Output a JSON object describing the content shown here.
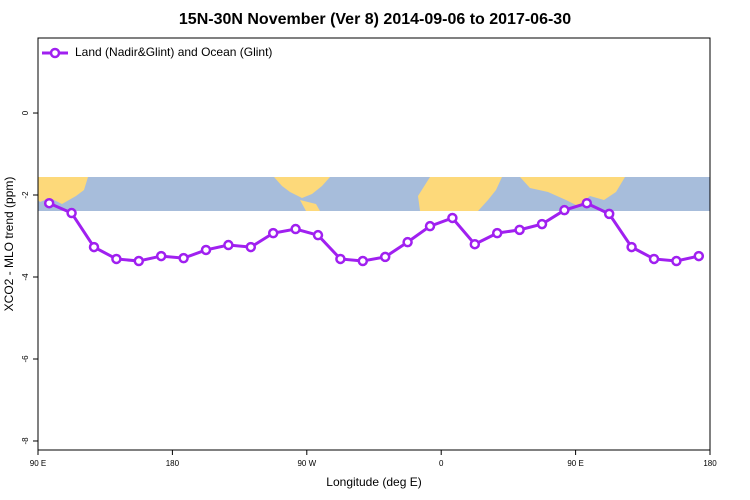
{
  "chart_data": {
    "type": "line",
    "title": "15N-30N November (Ver 8)   2014-09-06 to 2017-06-30",
    "x_label": "Longitude (deg E)",
    "y_label": "XCO2 - MLO trend (ppm)",
    "x": [
      97.5,
      112.5,
      127.5,
      142.5,
      157.5,
      172.5,
      187.5,
      202.5,
      217.5,
      232.5,
      247.5,
      262.5,
      277.5,
      292.5,
      307.5,
      322.5,
      337.5,
      352.5,
      367.5,
      382.5,
      397.5,
      412.5,
      427.5,
      442.5,
      457.5,
      472.5,
      487.5,
      502.5,
      517.5,
      532.5
    ],
    "series": [
      {
        "name": "Land (Nadir&Glint) and Ocean (Glint)",
        "color": "#a020f0",
        "values": [
          -2.2,
          -2.44,
          -3.27,
          -3.56,
          -3.61,
          -3.49,
          -3.54,
          -3.34,
          -3.22,
          -3.27,
          -2.93,
          -2.83,
          -2.98,
          -3.56,
          -3.61,
          -3.51,
          -3.15,
          -2.76,
          -2.56,
          -3.2,
          -2.93,
          -2.85,
          -2.71,
          -2.37,
          -2.2,
          -2.46,
          -3.27,
          -3.56,
          -3.61,
          -3.49
        ]
      }
    ],
    "xlim": [
      90,
      540
    ],
    "xticks": [
      {
        "value": 90,
        "label": "90 E"
      },
      {
        "value": 180,
        "label": "180"
      },
      {
        "value": 270,
        "label": "90 W"
      },
      {
        "value": 360,
        "label": "0"
      },
      {
        "value": 450,
        "label": "90 E"
      },
      {
        "value": 540,
        "label": "180"
      }
    ],
    "ylim": [
      -8.22,
      1.83
    ],
    "yticks": [
      0,
      -2,
      -4,
      -6,
      -8
    ],
    "legend": "top-left"
  }
}
